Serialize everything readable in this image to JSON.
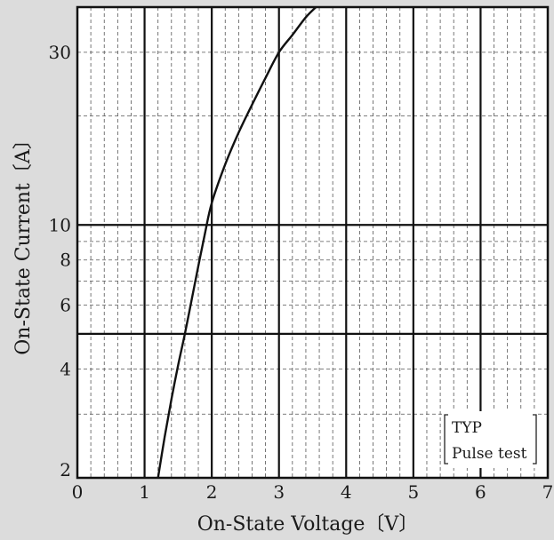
{
  "chart_data": {
    "type": "line",
    "title": "",
    "xlabel": "On-State Voltage〔V〕",
    "ylabel": "On-State Current〔A〕",
    "xlim": [
      0,
      7
    ],
    "ylim": [
      2,
      40
    ],
    "y_scale": "log",
    "grid": true,
    "x_ticks": [
      "0",
      "1",
      "2",
      "3",
      "4",
      "5",
      "6",
      "7"
    ],
    "y_ticks": [
      {
        "value": 2,
        "label": "2"
      },
      {
        "value": 4,
        "label": "4"
      },
      {
        "value": 6,
        "label": "6"
      },
      {
        "value": 8,
        "label": "8"
      },
      {
        "value": 10,
        "label": "10"
      },
      {
        "value": 30,
        "label": "30"
      }
    ],
    "series": [
      {
        "x": [
          1.2,
          1.3,
          1.4,
          1.5,
          1.6,
          1.7,
          1.8,
          1.9,
          2.0,
          2.2,
          2.4,
          2.6,
          2.8,
          3.0,
          3.2,
          3.4,
          3.55
        ],
        "y": [
          2.0,
          2.6,
          3.3,
          4.1,
          5.0,
          6.2,
          7.7,
          9.5,
          11.5,
          14.7,
          18.0,
          21.5,
          25.5,
          30.0,
          33.5,
          37.5,
          40.0
        ]
      }
    ],
    "annotation": {
      "line1": "TYP",
      "line2": "Pulse test"
    }
  }
}
